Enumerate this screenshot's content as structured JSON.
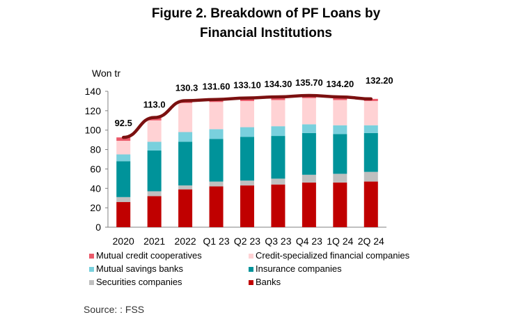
{
  "page_title": [
    "Figure 2. Breakdown of PF Loans by",
    "Financial Institutions"
  ],
  "source": "Source: : FSS",
  "colors": {
    "Banks": "#c00000",
    "Securities companies": "#bfbfbf",
    "Insurance companies": "#00939a",
    "Mutual savings banks": "#79d0dd",
    "Credit-specialized financial companies": "#ffd2d4",
    "Mutual credit cooperatives": "#eb5a6a",
    "total_line": "#7b1010"
  },
  "chart_data": {
    "type": "bar",
    "stacked": true,
    "ylabel": "Won tr",
    "ylim": [
      0,
      140
    ],
    "yticks": [
      0,
      20,
      40,
      60,
      80,
      100,
      120,
      140
    ],
    "categories": [
      "2020",
      "2021",
      "2022",
      "Q1 23",
      "Q2 23",
      "Q3 23",
      "Q4 23",
      "1Q 24",
      "2Q 24"
    ],
    "series": [
      {
        "name": "Banks",
        "values": [
          26,
          32,
          39,
          42,
          43,
          44,
          46,
          46,
          47
        ]
      },
      {
        "name": "Securities companies",
        "values": [
          5,
          5,
          4,
          5,
          5,
          6,
          8,
          9,
          10
        ]
      },
      {
        "name": "Insurance companies",
        "values": [
          37,
          42,
          45,
          44,
          45,
          44,
          43,
          41,
          40
        ]
      },
      {
        "name": "Mutual savings banks",
        "values": [
          7,
          9,
          10,
          10,
          10,
          10,
          9,
          9,
          8
        ]
      },
      {
        "name": "Credit-specialized financial companies",
        "values": [
          14,
          22,
          30,
          28,
          27,
          27,
          27,
          26,
          25
        ]
      },
      {
        "name": "Mutual credit cooperatives",
        "values": [
          3.5,
          3.0,
          2.3,
          2.6,
          3.1,
          3.3,
          2.7,
          3.2,
          2.2
        ]
      }
    ],
    "totals": {
      "values": [
        92.5,
        113.0,
        130.3,
        131.6,
        133.1,
        134.3,
        135.7,
        134.2,
        132.2
      ],
      "labels": [
        "92.5",
        "113.0",
        "130.3",
        "131.60",
        "133.10",
        "134.30",
        "135.70",
        "134.20",
        "132.20"
      ]
    },
    "legend": {
      "placement": "bottom",
      "items": [
        "Mutual credit cooperatives",
        "Credit-specialized financial companies",
        "Mutual savings banks",
        "Insurance companies",
        "Securities companies",
        "Banks"
      ]
    }
  }
}
